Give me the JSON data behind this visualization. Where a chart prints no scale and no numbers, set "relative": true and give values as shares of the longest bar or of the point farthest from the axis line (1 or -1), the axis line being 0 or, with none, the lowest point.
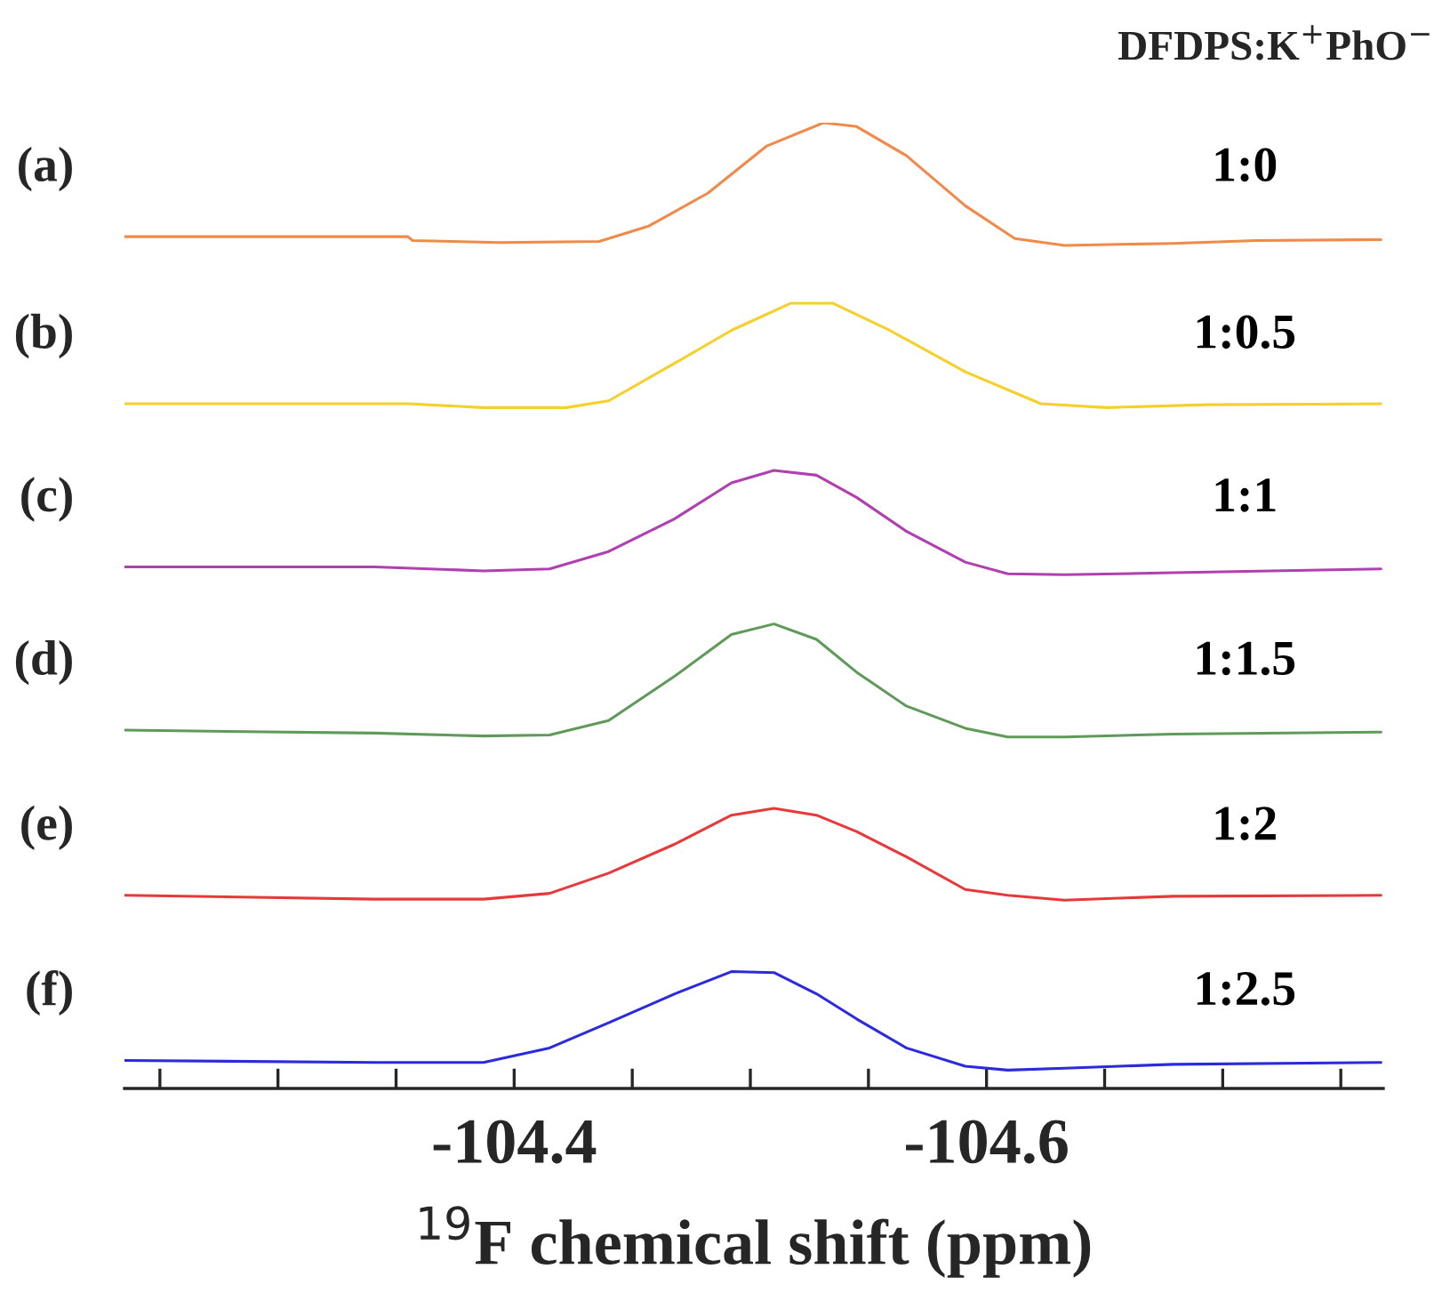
{
  "chart_data": {
    "type": "line",
    "title": "DFDPS:K$^{+}$PhO$^{−}$",
    "relative": true,
    "tick_labels": "x",
    "xlim": [
      -104.235,
      -104.768
    ],
    "xlabel": "$^{19}$F chemical shift (ppm)",
    "annotations": [
      "(a)",
      "(b)",
      "(c)",
      "(d)",
      "(e)",
      "(f)"
    ],
    "xticks": [
      {
        "value": -104.25,
        "label": null
      },
      {
        "value": -104.3,
        "label": null
      },
      {
        "value": -104.35,
        "label": null
      },
      -104.4,
      {
        "value": -104.45,
        "label": null
      },
      {
        "value": -104.5,
        "label": null
      },
      {
        "value": -104.55,
        "label": null
      },
      -104.6,
      {
        "value": -104.65,
        "label": null
      },
      {
        "value": -104.7,
        "label": null
      },
      {
        "value": -104.75,
        "label": null
      }
    ],
    "series": [
      {
        "name": "1:0",
        "color": "#f08a4b",
        "x": [
          -104.235,
          -104.355,
          -104.357,
          -104.394,
          -104.436,
          -104.457,
          -104.482,
          -104.507,
          -104.531,
          -104.545,
          -104.566,
          -104.591,
          -104.612,
          -104.633,
          -104.679,
          -104.714,
          -104.767
        ],
        "values": [
          0.882,
          0.882,
          0.878,
          0.876,
          0.877,
          0.893,
          0.927,
          0.976,
          1,
          0.996,
          0.966,
          0.914,
          0.88,
          0.873,
          0.875,
          0.878,
          0.879
        ]
      },
      {
        "name": "1:0.5",
        "color": "#f5d02a",
        "x": [
          -104.235,
          -104.355,
          -104.387,
          -104.422,
          -104.44,
          -104.468,
          -104.492,
          -104.517,
          -104.535,
          -104.559,
          -104.591,
          -104.623,
          -104.651,
          -104.693,
          -104.767
        ],
        "values": [
          0.709,
          0.709,
          0.705,
          0.705,
          0.712,
          0.751,
          0.785,
          0.813,
          0.813,
          0.785,
          0.742,
          0.709,
          0.705,
          0.708,
          0.709
        ]
      },
      {
        "name": "1:1",
        "color": "#b03fb0",
        "x": [
          -104.235,
          -104.341,
          -104.387,
          -104.415,
          -104.44,
          -104.468,
          -104.492,
          -104.51,
          -104.528,
          -104.545,
          -104.566,
          -104.591,
          -104.609,
          -104.633,
          -104.679,
          -104.767
        ],
        "values": [
          0.54,
          0.54,
          0.536,
          0.538,
          0.556,
          0.59,
          0.627,
          0.64,
          0.635,
          0.612,
          0.577,
          0.545,
          0.533,
          0.532,
          0.534,
          0.538
        ]
      },
      {
        "name": "1:1.5",
        "color": "#5f9a5a",
        "x": [
          -104.235,
          -104.341,
          -104.387,
          -104.415,
          -104.44,
          -104.468,
          -104.492,
          -104.51,
          -104.528,
          -104.545,
          -104.566,
          -104.591,
          -104.609,
          -104.633,
          -104.679,
          -104.767
        ],
        "values": [
          0.371,
          0.368,
          0.365,
          0.366,
          0.381,
          0.427,
          0.47,
          0.481,
          0.465,
          0.431,
          0.396,
          0.373,
          0.364,
          0.364,
          0.367,
          0.369
        ]
      },
      {
        "name": "1:2",
        "color": "#e8393a",
        "x": [
          -104.235,
          -104.341,
          -104.387,
          -104.415,
          -104.44,
          -104.468,
          -104.492,
          -104.51,
          -104.528,
          -104.545,
          -104.566,
          -104.591,
          -104.609,
          -104.633,
          -104.679,
          -104.767
        ],
        "values": [
          0.2,
          0.196,
          0.196,
          0.202,
          0.223,
          0.253,
          0.283,
          0.29,
          0.283,
          0.266,
          0.24,
          0.206,
          0.2,
          0.195,
          0.199,
          0.2
        ]
      },
      {
        "name": "1:2.5",
        "color": "#2b2bdd",
        "x": [
          -104.235,
          -104.341,
          -104.387,
          -104.415,
          -104.44,
          -104.468,
          -104.492,
          -104.51,
          -104.528,
          -104.545,
          -104.566,
          -104.591,
          -104.609,
          -104.633,
          -104.679,
          -104.767
        ],
        "values": [
          0.029,
          0.027,
          0.027,
          0.042,
          0.068,
          0.098,
          0.121,
          0.12,
          0.098,
          0.072,
          0.042,
          0.023,
          0.019,
          0.021,
          0.025,
          0.027
        ]
      }
    ]
  }
}
